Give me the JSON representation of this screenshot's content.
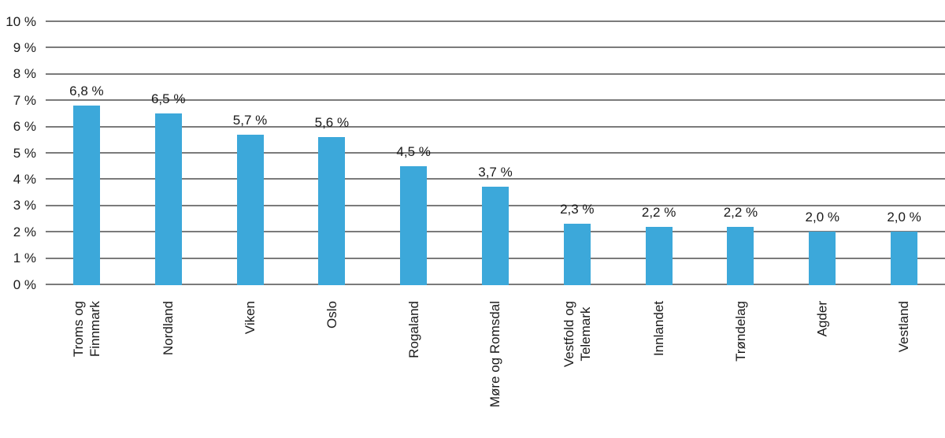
{
  "figure": {
    "background_color": "#ffffff",
    "text_color": "#1a1a1a"
  },
  "chart_data": {
    "type": "bar",
    "title": "",
    "xlabel": "",
    "ylabel": "",
    "categories": [
      "Troms og\nFinnmark",
      "Nordland",
      "Viken",
      "Oslo",
      "Rogaland",
      "Møre og Romsdal",
      "Vestfold og\nTelemark",
      "Innlandet",
      "Trøndelag",
      "Agder",
      "Vestland"
    ],
    "values": [
      6.8,
      6.5,
      5.7,
      5.6,
      4.5,
      3.7,
      2.3,
      2.2,
      2.2,
      2.0,
      2.0
    ],
    "value_labels": [
      "6,8 %",
      "6,5 %",
      "5,7 %",
      "5,6 %",
      "4,5 %",
      "3,7 %",
      "2,3 %",
      "2,2 %",
      "2,2 %",
      "2,0 %",
      "2,0 %"
    ],
    "y_tick_labels": [
      "0 %",
      "1 %",
      "2 %",
      "3 %",
      "4 %",
      "5 %",
      "6 %",
      "7 %",
      "8 %",
      "9 %",
      "10 %"
    ],
    "ylim": [
      0,
      10
    ],
    "grid": "horizontal",
    "legend": "none",
    "bar_color": "#3CA8DA",
    "gridline_color": "#7b7b7b"
  }
}
